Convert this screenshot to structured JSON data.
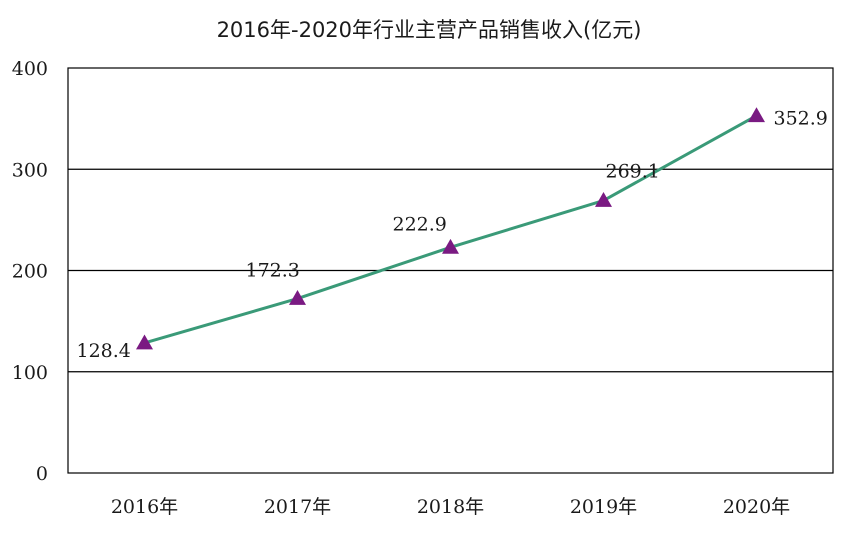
{
  "chart_data": {
    "type": "line",
    "title": "2016年-2020年行业主营产品销售收入(亿元)",
    "xlabel": "",
    "ylabel": "",
    "categories": [
      "2016年",
      "2017年",
      "2018年",
      "2019年",
      "2020年"
    ],
    "series": [
      {
        "values": [
          128.4,
          172.3,
          222.9,
          269.1,
          352.9
        ]
      }
    ],
    "data_labels": [
      "128.4",
      "172.3",
      "222.9",
      "269.1",
      "352.9"
    ],
    "ylim": [
      0,
      400
    ],
    "yticks": [
      0,
      100,
      200,
      300,
      400
    ],
    "grid": true,
    "legend": "none",
    "colors": {
      "line": "#3a9a78",
      "marker": "#7a1a82",
      "grid": "#000000"
    }
  }
}
